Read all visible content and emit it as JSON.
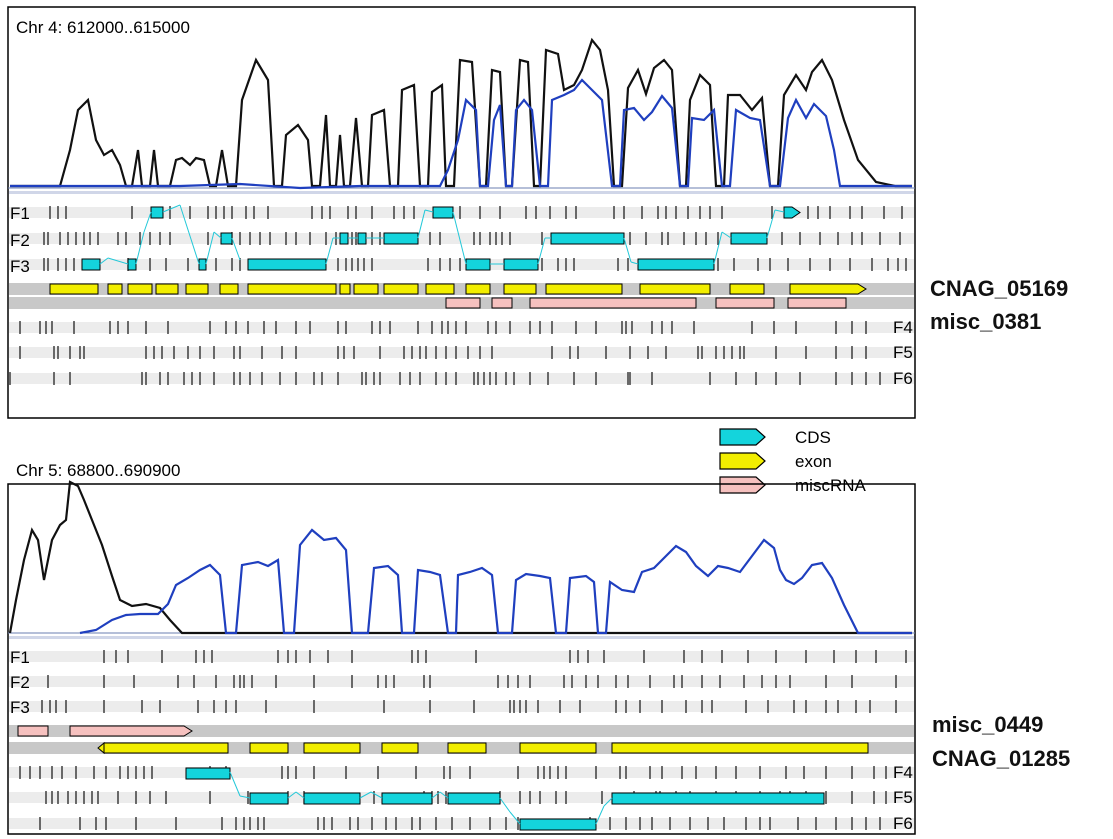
{
  "colors": {
    "coverage_black": "#111111",
    "coverage_blue": "#1f3fbf",
    "cds_fill": "#14d4dc",
    "exon_fill": "#f2ee00",
    "misc_fill": "#f6c1bf",
    "track_bg": "#ececec",
    "strand_bg": "#c8c8c8",
    "connector": "#22c8d8"
  },
  "legend": [
    {
      "label": "CDS",
      "color": "#14d4dc"
    },
    {
      "label": "exon",
      "color": "#f2ee00"
    },
    {
      "label": "miscRNA",
      "color": "#f6c1bf"
    }
  ],
  "panels": [
    {
      "title": "Chr 4: 612000..615000",
      "frames_top": [
        "F1",
        "F2",
        "F3"
      ],
      "frames_bottom": [
        "F4",
        "F5",
        "F6"
      ],
      "gene_labels": [
        "CNAG_05169",
        "misc_0381"
      ]
    },
    {
      "title": "Chr 5: 68800..690900",
      "frames_top": [
        "F1",
        "F2",
        "F3"
      ],
      "frames_bottom": [
        "F4",
        "F5",
        "F6"
      ],
      "gene_labels": [
        "misc_0449",
        "CNAG_01285"
      ]
    }
  ]
}
